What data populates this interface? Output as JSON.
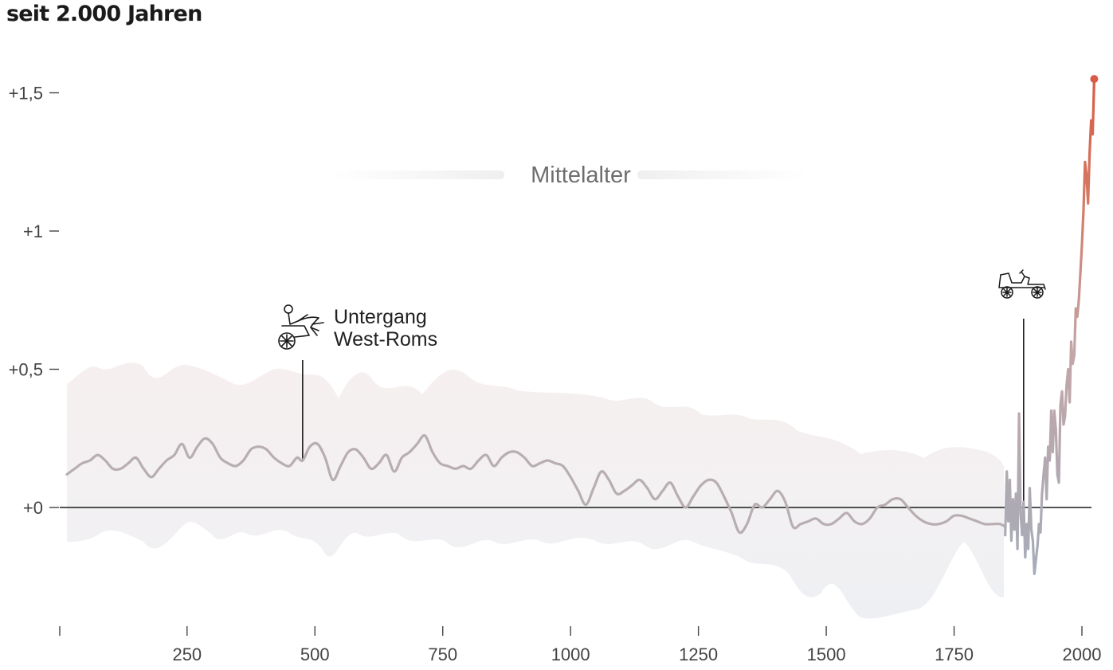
{
  "title": "seit 2.000 Jahren",
  "colors": {
    "line_old": "#b8aeb2",
    "line_cold": "#a5acb8",
    "line_warm": "#d9604a",
    "band_warm": "#f6efef",
    "band_cool": "#eeeff3",
    "zero_line": "#1a1a1a"
  },
  "chart_data": {
    "type": "line",
    "xlim": [
      1,
      2024
    ],
    "ylim": [
      -0.42,
      1.62
    ],
    "y_ticks": [
      {
        "value": 0,
        "label": "+0"
      },
      {
        "value": 0.5,
        "label": "+0,5"
      },
      {
        "value": 1,
        "label": "+1"
      },
      {
        "value": 1.5,
        "label": "+1,5"
      }
    ],
    "x_ticks": [
      {
        "value": 1,
        "label": ""
      },
      {
        "value": 250,
        "label": "250"
      },
      {
        "value": 500,
        "label": "500"
      },
      {
        "value": 750,
        "label": "750"
      },
      {
        "value": 1000,
        "label": "1000"
      },
      {
        "value": 1250,
        "label": "1250"
      },
      {
        "value": 1500,
        "label": "1500"
      },
      {
        "value": 1750,
        "label": "1750"
      },
      {
        "value": 2000,
        "label": "2000"
      }
    ],
    "grid": false,
    "series": [
      {
        "x": [
          15,
          30,
          45,
          60,
          75,
          90,
          105,
          120,
          135,
          150,
          165,
          180,
          195,
          210,
          225,
          240,
          255,
          270,
          285,
          300,
          315,
          330,
          345,
          360,
          375,
          390,
          405,
          420,
          435,
          450,
          465,
          476,
          490,
          505,
          520,
          535,
          550,
          565,
          580,
          595,
          610,
          625,
          640,
          655,
          670,
          685,
          700,
          715,
          730,
          745,
          760,
          775,
          790,
          805,
          820,
          835,
          850,
          865,
          880,
          895,
          910,
          925,
          940,
          955,
          970,
          985,
          1000,
          1015,
          1030,
          1045,
          1060,
          1075,
          1090,
          1105,
          1120,
          1135,
          1150,
          1165,
          1180,
          1195,
          1210,
          1225,
          1240,
          1255,
          1270,
          1285,
          1300,
          1315,
          1330,
          1345,
          1360,
          1375,
          1390,
          1405,
          1420,
          1435,
          1450,
          1465,
          1480,
          1495,
          1510,
          1525,
          1540,
          1555,
          1570,
          1585,
          1600,
          1615,
          1630,
          1645,
          1660,
          1675,
          1690,
          1705,
          1720,
          1735,
          1750,
          1765,
          1780,
          1795,
          1810,
          1825,
          1840,
          1850
        ],
        "y": [
          0.12,
          0.14,
          0.16,
          0.17,
          0.19,
          0.17,
          0.14,
          0.14,
          0.16,
          0.18,
          0.14,
          0.11,
          0.14,
          0.17,
          0.19,
          0.23,
          0.18,
          0.22,
          0.25,
          0.23,
          0.18,
          0.16,
          0.15,
          0.17,
          0.21,
          0.22,
          0.21,
          0.18,
          0.16,
          0.15,
          0.18,
          0.17,
          0.22,
          0.23,
          0.18,
          0.1,
          0.15,
          0.2,
          0.21,
          0.18,
          0.14,
          0.16,
          0.19,
          0.13,
          0.18,
          0.2,
          0.23,
          0.26,
          0.2,
          0.16,
          0.15,
          0.14,
          0.15,
          0.14,
          0.17,
          0.19,
          0.15,
          0.18,
          0.2,
          0.2,
          0.18,
          0.15,
          0.16,
          0.17,
          0.16,
          0.15,
          0.11,
          0.06,
          0.01,
          0.07,
          0.13,
          0.1,
          0.05,
          0.06,
          0.08,
          0.1,
          0.07,
          0.03,
          0.06,
          0.09,
          0.04,
          0.0,
          0.04,
          0.08,
          0.1,
          0.09,
          0.04,
          -0.02,
          -0.09,
          -0.06,
          0.01,
          0.0,
          0.03,
          0.06,
          0.02,
          -0.07,
          -0.06,
          -0.05,
          -0.04,
          -0.06,
          -0.06,
          -0.04,
          -0.02,
          -0.05,
          -0.06,
          -0.04,
          0.0,
          0.01,
          0.03,
          0.03,
          0.0,
          -0.03,
          -0.05,
          -0.06,
          -0.06,
          -0.05,
          -0.03,
          -0.03,
          -0.04,
          -0.05,
          -0.06,
          -0.06,
          -0.06,
          -0.07
        ]
      },
      {
        "x": [
          1850,
          1853,
          1856,
          1859,
          1862,
          1865,
          1868,
          1871,
          1874,
          1877,
          1880,
          1883,
          1886,
          1889,
          1892,
          1895,
          1898,
          1901,
          1904,
          1907,
          1910,
          1913,
          1916,
          1919,
          1922,
          1925,
          1928,
          1931,
          1934,
          1937,
          1940,
          1943,
          1946,
          1949,
          1952,
          1955,
          1958,
          1961,
          1964,
          1967,
          1970,
          1973,
          1976,
          1979,
          1982,
          1985,
          1988,
          1991,
          1994,
          1997,
          2000,
          2003,
          2006,
          2009,
          2012,
          2015,
          2018,
          2021,
          2024
        ],
        "y": [
          -0.1,
          0.13,
          -0.05,
          0.1,
          -0.12,
          0.03,
          -0.08,
          0.05,
          -0.15,
          0.34,
          -0.02,
          -0.1,
          0.02,
          -0.18,
          -0.06,
          -0.15,
          0.07,
          -0.08,
          -0.12,
          -0.24,
          -0.19,
          -0.14,
          -0.06,
          -0.09,
          0.05,
          0.12,
          0.18,
          0.03,
          0.22,
          0.17,
          0.35,
          0.2,
          0.35,
          0.28,
          0.12,
          0.09,
          0.37,
          0.42,
          0.3,
          0.33,
          0.44,
          0.5,
          0.38,
          0.6,
          0.52,
          0.55,
          0.72,
          0.69,
          0.75,
          0.85,
          0.95,
          1.07,
          1.25,
          1.2,
          1.1,
          1.28,
          1.4,
          1.35,
          1.55
        ]
      }
    ],
    "annotations": [
      {
        "x": 476,
        "label": [
          "Untergang",
          "West-Roms"
        ]
      },
      {
        "x": 1886,
        "label": []
      }
    ],
    "period": {
      "label": "Mittelalter",
      "from": 500,
      "to": 1500
    }
  }
}
